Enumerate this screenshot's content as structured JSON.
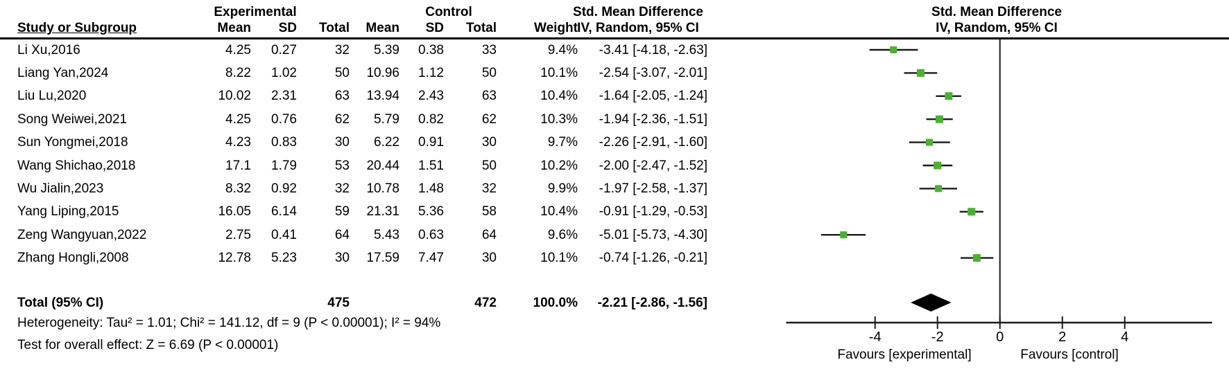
{
  "chart_data": {
    "type": "forest",
    "group_headers": {
      "experimental": "Experimental",
      "control": "Control"
    },
    "effect_header_line1": "Std. Mean Difference",
    "effect_header_line2": "IV, Random, 95% CI",
    "plot_header_line1": "Std. Mean Difference",
    "plot_header_line2": "IV, Random, 95% CI",
    "column_headers": {
      "study": "Study or Subgroup",
      "mean": "Mean",
      "sd": "SD",
      "total": "Total",
      "weight": "Weight"
    },
    "studies": [
      {
        "name": "Li Xu,2016",
        "exp_mean": "4.25",
        "exp_sd": "0.27",
        "exp_total": "32",
        "ctrl_mean": "5.39",
        "ctrl_sd": "0.38",
        "ctrl_total": "33",
        "weight": "9.4%",
        "weight_val": 9.4,
        "smd": -3.41,
        "ci_lo": -4.18,
        "ci_hi": -2.63,
        "ci_text": "-3.41 [-4.18, -2.63]"
      },
      {
        "name": "Liang Yan,2024",
        "exp_mean": "8.22",
        "exp_sd": "1.02",
        "exp_total": "50",
        "ctrl_mean": "10.96",
        "ctrl_sd": "1.12",
        "ctrl_total": "50",
        "weight": "10.1%",
        "weight_val": 10.1,
        "smd": -2.54,
        "ci_lo": -3.07,
        "ci_hi": -2.01,
        "ci_text": "-2.54 [-3.07, -2.01]"
      },
      {
        "name": "Liu Lu,2020",
        "exp_mean": "10.02",
        "exp_sd": "2.31",
        "exp_total": "63",
        "ctrl_mean": "13.94",
        "ctrl_sd": "2.43",
        "ctrl_total": "63",
        "weight": "10.4%",
        "weight_val": 10.4,
        "smd": -1.64,
        "ci_lo": -2.05,
        "ci_hi": -1.24,
        "ci_text": "-1.64 [-2.05, -1.24]"
      },
      {
        "name": "Song Weiwei,2021",
        "exp_mean": "4.25",
        "exp_sd": "0.76",
        "exp_total": "62",
        "ctrl_mean": "5.79",
        "ctrl_sd": "0.82",
        "ctrl_total": "62",
        "weight": "10.3%",
        "weight_val": 10.3,
        "smd": -1.94,
        "ci_lo": -2.36,
        "ci_hi": -1.51,
        "ci_text": "-1.94 [-2.36, -1.51]"
      },
      {
        "name": "Sun Yongmei,2018",
        "exp_mean": "4.23",
        "exp_sd": "0.83",
        "exp_total": "30",
        "ctrl_mean": "6.22",
        "ctrl_sd": "0.91",
        "ctrl_total": "30",
        "weight": "9.7%",
        "weight_val": 9.7,
        "smd": -2.26,
        "ci_lo": -2.91,
        "ci_hi": -1.6,
        "ci_text": "-2.26 [-2.91, -1.60]"
      },
      {
        "name": "Wang Shichao,2018",
        "exp_mean": "17.1",
        "exp_sd": "1.79",
        "exp_total": "53",
        "ctrl_mean": "20.44",
        "ctrl_sd": "1.51",
        "ctrl_total": "50",
        "weight": "10.2%",
        "weight_val": 10.2,
        "smd": -2.0,
        "ci_lo": -2.47,
        "ci_hi": -1.52,
        "ci_text": "-2.00 [-2.47, -1.52]"
      },
      {
        "name": "Wu Jialin,2023",
        "exp_mean": "8.32",
        "exp_sd": "0.92",
        "exp_total": "32",
        "ctrl_mean": "10.78",
        "ctrl_sd": "1.48",
        "ctrl_total": "32",
        "weight": "9.9%",
        "weight_val": 9.9,
        "smd": -1.97,
        "ci_lo": -2.58,
        "ci_hi": -1.37,
        "ci_text": "-1.97 [-2.58, -1.37]"
      },
      {
        "name": "Yang Liping,2015",
        "exp_mean": "16.05",
        "exp_sd": "6.14",
        "exp_total": "59",
        "ctrl_mean": "21.31",
        "ctrl_sd": "5.36",
        "ctrl_total": "58",
        "weight": "10.4%",
        "weight_val": 10.4,
        "smd": -0.91,
        "ci_lo": -1.29,
        "ci_hi": -0.53,
        "ci_text": "-0.91 [-1.29, -0.53]"
      },
      {
        "name": "Zeng Wangyuan,2022",
        "exp_mean": "2.75",
        "exp_sd": "0.41",
        "exp_total": "64",
        "ctrl_mean": "5.43",
        "ctrl_sd": "0.63",
        "ctrl_total": "64",
        "weight": "9.6%",
        "weight_val": 9.6,
        "smd": -5.01,
        "ci_lo": -5.73,
        "ci_hi": -4.3,
        "ci_text": "-5.01 [-5.73, -4.30]"
      },
      {
        "name": "Zhang Hongli,2008",
        "exp_mean": "12.78",
        "exp_sd": "5.23",
        "exp_total": "30",
        "ctrl_mean": "17.59",
        "ctrl_sd": "7.47",
        "ctrl_total": "30",
        "weight": "10.1%",
        "weight_val": 10.1,
        "smd": -0.74,
        "ci_lo": -1.26,
        "ci_hi": -0.21,
        "ci_text": "-0.74 [-1.26, -0.21]"
      }
    ],
    "total": {
      "label": "Total (95% CI)",
      "exp_total": "475",
      "ctrl_total": "472",
      "weight": "100.0%",
      "smd": -2.21,
      "ci_lo": -2.86,
      "ci_hi": -1.56,
      "ci_text": "-2.21 [-2.86, -1.56]"
    },
    "heterogeneity": "Heterogeneity: Tau² = 1.01; Chi² = 141.12, df = 9 (P < 0.00001); I² = 94%",
    "overall_effect": "Test for overall effect: Z = 6.69 (P < 0.00001)",
    "axis": {
      "ticks": [
        -4,
        -2,
        0,
        2,
        4
      ],
      "min": -6.85,
      "max": 6.8
    },
    "favours_left": "Favours [experimental]",
    "favours_right": "Favours [control]",
    "marker_color": "#4cb032",
    "line_color": "#1a1a1a"
  }
}
